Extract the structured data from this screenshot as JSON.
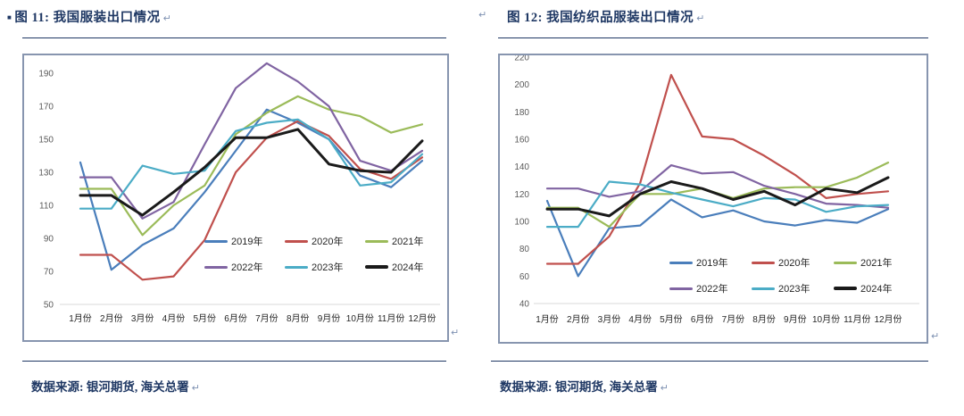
{
  "marks": {
    "return": "↵"
  },
  "figures": [
    {
      "bullet": "■",
      "title": "图 11: 我国服装出口情况",
      "source": "数据来源: 银河期货, 海关总署"
    },
    {
      "bullet": "",
      "title": "图 12: 我国纺织品服装出口情况",
      "source": "数据来源: 银河期货, 海关总署"
    }
  ],
  "chart_data": [
    {
      "type": "line",
      "title": "图 11: 我国服装出口情况",
      "categories": [
        "1月份",
        "2月份",
        "3月份",
        "4月份",
        "5月份",
        "6月份",
        "7月份",
        "8月份",
        "9月份",
        "10月份",
        "11月份",
        "12月份"
      ],
      "ylim": [
        50,
        190
      ],
      "yticks": [
        50,
        70,
        90,
        110,
        130,
        150,
        170,
        190
      ],
      "grid": "baseline-only",
      "legend_position": "inside-bottom-right",
      "series": [
        {
          "name": "2019年",
          "color": "#4A7EBB",
          "line_width": 2.2,
          "values": [
            136,
            71,
            86,
            96,
            118,
            143,
            168,
            160,
            150,
            128,
            121,
            137
          ]
        },
        {
          "name": "2020年",
          "color": "#C0504D",
          "line_width": 2.2,
          "values": [
            80,
            80,
            65,
            67,
            89,
            130,
            151,
            161,
            152,
            132,
            126,
            139
          ]
        },
        {
          "name": "2021年",
          "color": "#9BBB59",
          "line_width": 2.2,
          "values": [
            120,
            120,
            92,
            110,
            122,
            153,
            166,
            176,
            168,
            164,
            154,
            159
          ]
        },
        {
          "name": "2022年",
          "color": "#8064A2",
          "line_width": 2.2,
          "values": [
            127,
            127,
            102,
            112,
            147,
            181,
            196,
            185,
            170,
            137,
            131,
            143
          ]
        },
        {
          "name": "2023年",
          "color": "#4BACC6",
          "line_width": 2.2,
          "values": [
            108,
            108,
            134,
            129,
            131,
            155,
            160,
            162,
            150,
            122,
            124,
            141
          ]
        },
        {
          "name": "2024年",
          "color": "#1A1A1A",
          "line_width": 3,
          "values": [
            116,
            116,
            104,
            118,
            133,
            151,
            151,
            156,
            135,
            131,
            130,
            149
          ]
        }
      ]
    },
    {
      "type": "line",
      "title": "图 12: 我国纺织品服装出口情况",
      "categories": [
        "1月份",
        "2月份",
        "3月份",
        "4月份",
        "5月份",
        "6月份",
        "7月份",
        "8月份",
        "9月份",
        "10月份",
        "11月份",
        "12月份"
      ],
      "ylim": [
        40,
        220
      ],
      "yticks": [
        40,
        60,
        80,
        100,
        120,
        140,
        160,
        180,
        200,
        220
      ],
      "grid": "baseline-only",
      "legend_position": "inside-bottom-right",
      "series": [
        {
          "name": "2019年",
          "color": "#4A7EBB",
          "line_width": 2.2,
          "values": [
            115,
            60,
            95,
            97,
            116,
            103,
            108,
            100,
            97,
            101,
            99,
            109
          ]
        },
        {
          "name": "2020年",
          "color": "#C0504D",
          "line_width": 2.2,
          "values": [
            69,
            69,
            89,
            128,
            207,
            162,
            160,
            148,
            134,
            117,
            120,
            122
          ]
        },
        {
          "name": "2021年",
          "color": "#9BBB59",
          "line_width": 2.2,
          "values": [
            110,
            110,
            96,
            120,
            120,
            124,
            117,
            124,
            125,
            125,
            132,
            143
          ]
        },
        {
          "name": "2022年",
          "color": "#8064A2",
          "line_width": 2.2,
          "values": [
            124,
            124,
            118,
            122,
            141,
            135,
            136,
            126,
            120,
            113,
            112,
            110
          ]
        },
        {
          "name": "2023年",
          "color": "#4BACC6",
          "line_width": 2.2,
          "values": [
            96,
            96,
            129,
            127,
            121,
            116,
            111,
            117,
            116,
            107,
            111,
            112
          ]
        },
        {
          "name": "2024年",
          "color": "#1A1A1A",
          "line_width": 3,
          "values": [
            109,
            109,
            104,
            120,
            129,
            124,
            116,
            122,
            112,
            124,
            121,
            132
          ]
        }
      ]
    }
  ]
}
